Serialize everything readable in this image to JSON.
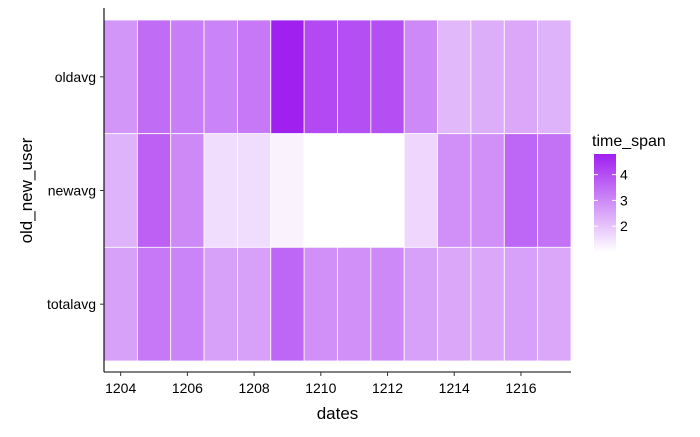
{
  "chart_data": {
    "type": "heatmap",
    "title": "",
    "xlabel": "dates",
    "ylabel": "old_new_user",
    "x": [
      1204,
      1205,
      1206,
      1207,
      1208,
      1209,
      1210,
      1211,
      1212,
      1213,
      1214,
      1215,
      1216,
      1217
    ],
    "x_tick_labels": [
      "1204",
      "1206",
      "1208",
      "1210",
      "1212",
      "1214",
      "1216"
    ],
    "x_tick_values": [
      1204,
      1206,
      1208,
      1210,
      1212,
      1214,
      1216
    ],
    "xlim": [
      1203.5,
      1217.5
    ],
    "y_categories_bottom_to_top": [
      "totalavg",
      "newavg",
      "oldavg"
    ],
    "rows": [
      {
        "label": "oldavg",
        "values": [
          2.8,
          3.5,
          3.2,
          3.1,
          3.3,
          4.8,
          4.1,
          4.0,
          4.0,
          3.0,
          2.2,
          2.4,
          2.5,
          2.3
        ]
      },
      {
        "label": "newavg",
        "values": [
          2.3,
          3.7,
          3.0,
          1.6,
          1.6,
          1.2,
          1.0,
          1.0,
          1.0,
          1.7,
          2.9,
          2.9,
          3.6,
          3.4
        ]
      },
      {
        "label": "totalavg",
        "values": [
          2.6,
          3.3,
          3.1,
          2.6,
          2.6,
          3.6,
          2.9,
          2.9,
          3.0,
          2.6,
          2.5,
          2.5,
          2.6,
          2.5
        ]
      }
    ],
    "legend": {
      "title": "time_span",
      "placement": "right",
      "breaks": [
        2,
        3,
        4
      ],
      "labels": [
        "2",
        "3",
        "4"
      ],
      "range": [
        1.0,
        4.8
      ],
      "low_color": "#ffffff",
      "high_color": "#a020f0"
    },
    "grid": false
  }
}
